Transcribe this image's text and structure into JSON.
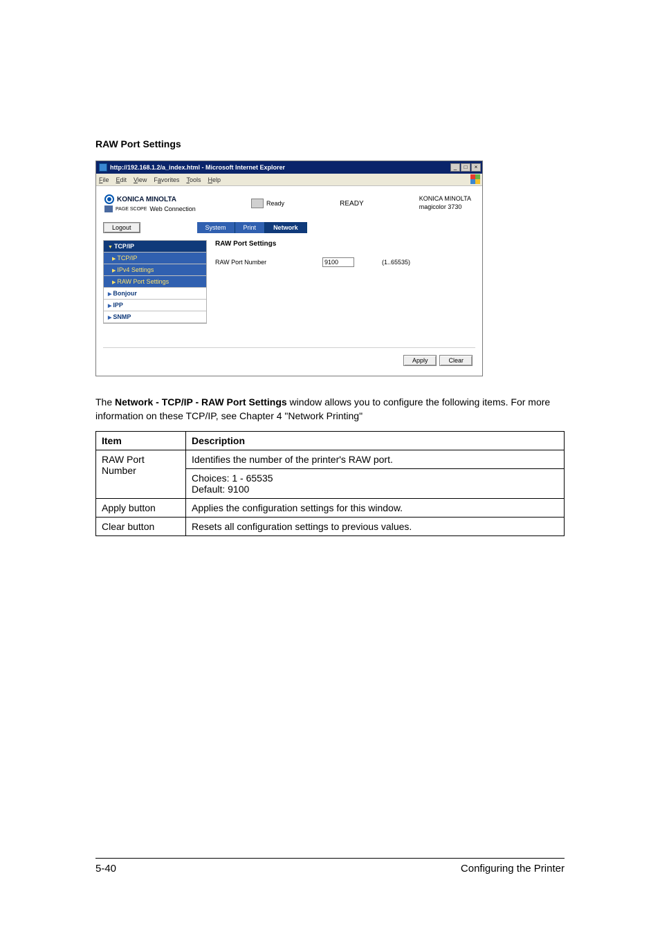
{
  "section_heading": "RAW Port Settings",
  "browser": {
    "title": "http://192.168.1.2/a_index.html - Microsoft Internet Explorer",
    "menu": {
      "file": "File",
      "edit": "Edit",
      "view": "View",
      "favorites": "Favorites",
      "tools": "Tools",
      "help": "Help"
    },
    "window_controls": {
      "min": "_",
      "max": "□",
      "close": "×"
    }
  },
  "header": {
    "brand": "KONICA MINOLTA",
    "webconn_prefix": "PAGE SCOPE",
    "webconn": "Web Connection",
    "ready_small": "Ready",
    "ready_big": "READY",
    "model_line1": "KONICA MINOLTA",
    "model_line2": "magicolor 3730"
  },
  "tabs": {
    "logout": "Logout",
    "system": "System",
    "print": "Print",
    "network": "Network"
  },
  "sidebar": {
    "tcpip_top": "TCP/IP",
    "tcpip_sub": "TCP/IP",
    "ipv4": "IPv4 Settings",
    "raw": "RAW Port Settings",
    "bonjour": "Bonjour",
    "ipp": "IPP",
    "snmp": "SNMP"
  },
  "panel": {
    "title": "RAW Port Settings",
    "field_label": "RAW Port Number",
    "field_value": "9100",
    "range": "(1..65535)"
  },
  "buttons": {
    "apply": "Apply",
    "clear": "Clear"
  },
  "body_paragraph": {
    "prefix": "The ",
    "bold": "Network - TCP/IP - RAW Port Settings",
    "rest": " window allows you to configure the following items. For more information on these TCP/IP, see Chapter 4 \"Network Printing\""
  },
  "table": {
    "header": {
      "item": "Item",
      "desc": "Description"
    },
    "rows": {
      "rawport": {
        "item": "RAW Port Number",
        "desc1": "Identifies the number of the printer's RAW port.",
        "desc2": "Choices: 1 - 65535\nDefault:  9100"
      },
      "apply": {
        "item": "Apply button",
        "desc": "Applies the configuration settings for this window."
      },
      "clear": {
        "item": "Clear button",
        "desc": "Resets all configuration settings to previous values."
      }
    }
  },
  "footer": {
    "page": "5-40",
    "label": "Configuring the Printer"
  }
}
